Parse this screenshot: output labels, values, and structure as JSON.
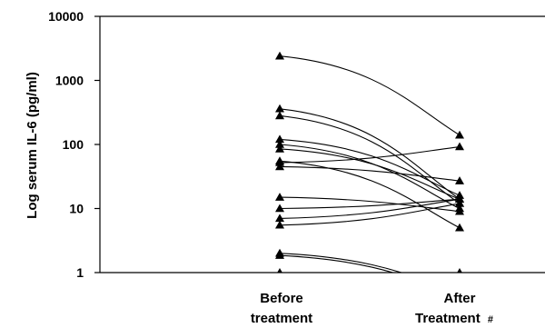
{
  "chart_data": {
    "type": "line",
    "title": "",
    "ylabel": "Log serum IL-6 (pg/ml)",
    "y_scale": "log",
    "ylim": [
      1,
      10000
    ],
    "y_ticks": [
      "1",
      "10",
      "100",
      "1000",
      "10000"
    ],
    "categories": [
      {
        "line1": "Before",
        "line2": "treatment",
        "suffix": ""
      },
      {
        "line1": "After",
        "line2": "Treatment",
        "suffix": "#"
      }
    ],
    "grid": false,
    "legend": "none",
    "marker": "triangle",
    "line_color": "#000000",
    "marker_color": "#000000",
    "pairs": [
      {
        "before": 2400,
        "after": 140
      },
      {
        "before": 360,
        "after": 14
      },
      {
        "before": 280,
        "after": 12
      },
      {
        "before": 120,
        "after": 16
      },
      {
        "before": 100,
        "after": 10
      },
      {
        "before": 85,
        "after": 14
      },
      {
        "before": 55,
        "after": 5
      },
      {
        "before": 45,
        "after": 27
      },
      {
        "before": 52,
        "after": 92
      },
      {
        "before": 15,
        "after": 9
      },
      {
        "before": 10,
        "after": 14
      },
      {
        "before": 7,
        "after": 14
      },
      {
        "before": 5.5,
        "after": 12
      },
      {
        "before": 2.0,
        "after": 0.5
      },
      {
        "before": 1.85,
        "after": 0.45
      },
      {
        "before": 1,
        "after": 1
      }
    ]
  }
}
